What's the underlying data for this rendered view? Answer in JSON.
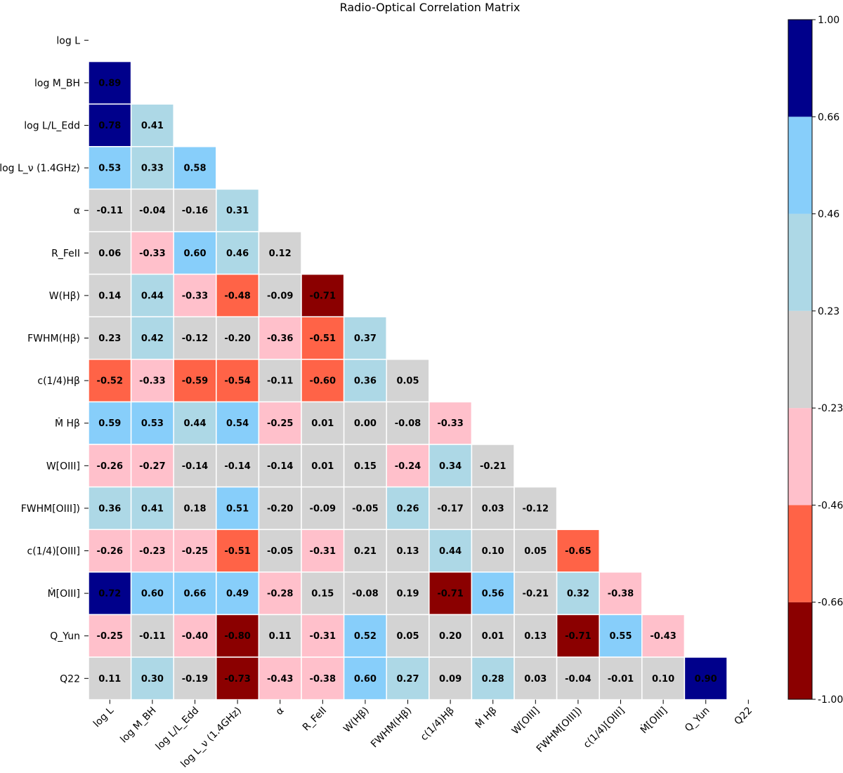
{
  "chart_data": {
    "type": "heatmap",
    "title": "Radio-Optical Correlation Matrix",
    "variables": [
      "log L",
      "log M_BH",
      "log L/L_Edd",
      "log L_ν (1.4GHz)",
      "α",
      "R_FeII",
      "W(Hβ)",
      "FWHM(Hβ)",
      "c(1/4)Hβ",
      "Ṁ Hβ",
      "W[OIII]",
      "FWHM[OIII])",
      "c(1/4)[OIII]",
      "Ṁ[OIII]",
      "Q_Yun",
      "Q22"
    ],
    "row_labels": [
      "log L",
      "log M_BH",
      "log L/L_Edd",
      "log L_ν (1.4GHz)",
      "α",
      "R_FeII",
      "W(Hβ)",
      "FWHM(Hβ)",
      "c(1/4)Hβ",
      "Ṁ Hβ",
      "W[OIII]",
      "FWHM[OIII])",
      "c(1/4)[OIII]",
      "Ṁ[OIII]",
      "Q_Yun",
      "Q22"
    ],
    "col_labels": [
      "log L",
      "log M_BH",
      "log L/L_Edd",
      "log L_ν (1.4GHz)",
      "α",
      "R_FeII",
      "W(Hβ)",
      "FWHM(Hβ)",
      "c(1/4)Hβ",
      "Ṁ Hβ",
      "W[OIII]",
      "FWHM[OIII])",
      "c(1/4)[OIII]",
      "Ṁ[OIII]",
      "Q_Yun",
      "Q22"
    ],
    "lower_triangle_values": [
      [],
      [
        0.89
      ],
      [
        0.78,
        0.41
      ],
      [
        0.53,
        0.33,
        0.58
      ],
      [
        -0.11,
        -0.04,
        -0.16,
        0.31
      ],
      [
        0.06,
        -0.33,
        0.6,
        0.46,
        0.12
      ],
      [
        0.14,
        0.44,
        -0.33,
        -0.48,
        -0.09,
        -0.71
      ],
      [
        0.23,
        0.42,
        -0.12,
        -0.2,
        -0.36,
        -0.51,
        0.37
      ],
      [
        -0.52,
        -0.33,
        -0.59,
        -0.54,
        -0.11,
        -0.6,
        0.36,
        0.05
      ],
      [
        0.59,
        0.53,
        0.44,
        0.54,
        -0.25,
        0.01,
        -0.0,
        -0.08,
        -0.33
      ],
      [
        -0.26,
        -0.27,
        -0.14,
        -0.14,
        -0.14,
        0.01,
        0.15,
        -0.24,
        0.34,
        -0.21
      ],
      [
        0.36,
        0.41,
        0.18,
        0.51,
        -0.2,
        -0.09,
        -0.05,
        0.26,
        -0.17,
        0.03,
        -0.12
      ],
      [
        -0.26,
        -0.23,
        -0.25,
        -0.51,
        -0.05,
        -0.31,
        0.21,
        0.13,
        0.44,
        0.1,
        0.05,
        -0.65
      ],
      [
        0.72,
        0.6,
        0.66,
        0.49,
        -0.28,
        0.15,
        -0.08,
        0.19,
        -0.71,
        0.56,
        -0.21,
        0.32,
        -0.38
      ],
      [
        -0.25,
        -0.11,
        -0.4,
        -0.8,
        0.11,
        -0.31,
        0.52,
        0.05,
        0.2,
        0.01,
        0.13,
        -0.71,
        0.55,
        -0.43
      ],
      [
        0.11,
        0.3,
        -0.19,
        -0.73,
        -0.43,
        -0.38,
        0.6,
        0.27,
        0.09,
        0.28,
        0.03,
        -0.04,
        -0.01,
        0.1,
        0.9
      ]
    ],
    "color_boundaries": [
      -1.0,
      -0.66,
      -0.46,
      -0.23,
      0.23,
      0.46,
      0.66,
      1.0
    ],
    "colors": [
      "#8b0000",
      "#ff6347",
      "#ffc0cb",
      "#d3d3d3",
      "#add8e6",
      "#87cefa",
      "#00008b"
    ],
    "colorbar_ticks": [
      "-1.00",
      "-0.66",
      "-0.46",
      "-0.23",
      "0.23",
      "0.46",
      "0.66",
      "1.00"
    ],
    "value_range": [
      -1.0,
      1.0
    ]
  }
}
